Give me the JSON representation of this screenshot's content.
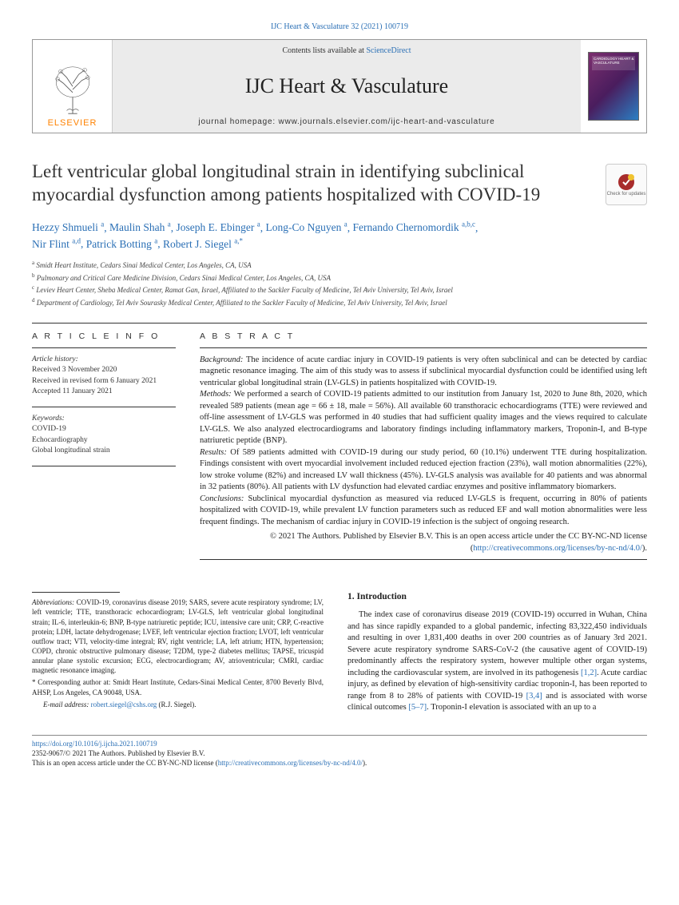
{
  "citation": "IJC Heart & Vasculature 32 (2021) 100719",
  "publisher": "ELSEVIER",
  "contentsPrefix": "Contents lists available at ",
  "contentsLink": "ScienceDirect",
  "journalName": "IJC Heart & Vasculature",
  "homepagePrefix": "journal homepage: ",
  "homepage": "www.journals.elsevier.com/ijc-heart-and-vasculature",
  "coverTitle": "CARDIOLOGY HEART & VASCULATURE",
  "title": "Left ventricular global longitudinal strain in identifying subclinical myocardial dysfunction among patients hospitalized with COVID-19",
  "updatesBadge": "Check for updates",
  "authors": [
    {
      "name": "Hezzy Shmueli",
      "sup": "a"
    },
    {
      "name": "Maulin Shah",
      "sup": "a"
    },
    {
      "name": "Joseph E. Ebinger",
      "sup": "a"
    },
    {
      "name": "Long-Co Nguyen",
      "sup": "a"
    },
    {
      "name": "Fernando Chernomordik",
      "sup": "a,b,c"
    },
    {
      "name": "Nir Flint",
      "sup": "a,d"
    },
    {
      "name": "Patrick Botting",
      "sup": "a"
    },
    {
      "name": "Robert J. Siegel",
      "sup": "a,*"
    }
  ],
  "affiliations": [
    {
      "sup": "a",
      "text": "Smidt Heart Institute, Cedars Sinai Medical Center, Los Angeles, CA, USA"
    },
    {
      "sup": "b",
      "text": "Pulmonary and Critical Care Medicine Division, Cedars Sinai Medical Center, Los Angeles, CA, USA"
    },
    {
      "sup": "c",
      "text": "Leviev Heart Center, Sheba Medical Center, Ramat Gan, Israel, Affiliated to the Sackler Faculty of Medicine, Tel Aviv University, Tel Aviv, Israel"
    },
    {
      "sup": "d",
      "text": "Department of Cardiology, Tel Aviv Sourasky Medical Center, Affiliated to the Sackler Faculty of Medicine, Tel Aviv University, Tel Aviv, Israel"
    }
  ],
  "articleInfo": {
    "head": "A R T I C L E   I N F O",
    "historyHead": "Article history:",
    "received": "Received 3 November 2020",
    "revised": "Received in revised form 6 January 2021",
    "accepted": "Accepted 11 January 2021",
    "keywordsHead": "Keywords:",
    "keywords": [
      "COVID-19",
      "Echocardiography",
      "Global longitudinal strain"
    ]
  },
  "abstract": {
    "head": "A B S T R A C T",
    "background": "The incidence of acute cardiac injury in COVID-19 patients is very often subclinical and can be detected by cardiac magnetic resonance imaging. The aim of this study was to assess if subclinical myocardial dysfunction could be identified using left ventricular global longitudinal strain (LV-GLS) in patients hospitalized with COVID-19.",
    "methods": "We performed a search of COVID-19 patients admitted to our institution from January 1st, 2020 to June 8th, 2020, which revealed 589 patients (mean age = 66 ± 18, male = 56%). All available 60 transthoracic echocardiograms (TTE) were reviewed and off-line assessment of LV-GLS was performed in 40 studies that had sufficient quality images and the views required to calculate LV-GLS. We also analyzed electrocardiograms and laboratory findings including inflammatory markers, Troponin-I, and B-type natriuretic peptide (BNP).",
    "results": "Of 589 patients admitted with COVID-19 during our study period, 60 (10.1%) underwent TTE during hospitalization. Findings consistent with overt myocardial involvement included reduced ejection fraction (23%), wall motion abnormalities (22%), low stroke volume (82%) and increased LV wall thickness (45%). LV-GLS analysis was available for 40 patients and was abnormal in 32 patients (80%). All patients with LV dysfunction had elevated cardiac enzymes and positive inflammatory biomarkers.",
    "conclusions": "Subclinical myocardial dysfunction as measured via reduced LV-GLS is frequent, occurring in 80% of patients hospitalized with COVID-19, while prevalent LV function parameters such as reduced EF and wall motion abnormalities were less frequent findings. The mechanism of cardiac injury in COVID-19 infection is the subject of ongoing research.",
    "copyright": "© 2021 The Authors. Published by Elsevier B.V. This is an open access article under the CC BY-NC-ND license (",
    "licenseUrl": "http://creativecommons.org/licenses/by-nc-nd/4.0/",
    "closeParen": ")."
  },
  "introduction": {
    "head": "1. Introduction",
    "text": "The index case of coronavirus disease 2019 (COVID-19) occurred in Wuhan, China and has since rapidly expanded to a global pandemic, infecting 83,322,450 individuals and resulting in over 1,831,400 deaths in over 200 countries as of January 3rd 2021. Severe acute respiratory syndrome SARS-CoV-2 (the causative agent of COVID-19) predominantly affects the respiratory system, however multiple other organ systems, including the cardiovascular system, are involved in its pathogenesis ",
    "ref12": "[1,2]",
    "text2": ". Acute cardiac injury, as defined by elevation of high-sensitivity cardiac troponin-I, has been reported to range from 8 to 28% of patients with COVID-19 ",
    "ref34": "[3,4]",
    "text3": " and is associated with worse clinical outcomes ",
    "ref57": "[5–7]",
    "text4": ". Troponin-I elevation is associated with an up to a"
  },
  "footnotes": {
    "abbrHead": "Abbreviations:",
    "abbr": " COVID-19, coronavirus disease 2019; SARS, severe acute respiratory syndrome; LV, left ventricle; TTE, transthoracic echocardiogram; LV-GLS, left ventricular global longitudinal strain; IL-6, interleukin-6; BNP, B-type natriuretic peptide; ICU, intensive care unit; CRP, C-reactive protein; LDH, lactate dehydrogenase; LVEF, left ventricular ejection fraction; LVOT, left ventricular outflow tract; VTI, velocity-time integral; RV, right ventricle; LA, left atrium; HTN, hypertension; COPD, chronic obstructive pulmonary disease; T2DM, type-2 diabetes mellitus; TAPSE, tricuspid annular plane systolic excursion; ECG, electrocardiogram; AV, atrioventricular; CMRI, cardiac magnetic resonance imaging.",
    "corrMark": "*",
    "corr": " Corresponding author at: Smidt Heart Institute, Cedars-Sinai Medical Center, 8700 Beverly Blvd, AHSP, Los Angeles, CA 90048, USA.",
    "emailHead": "E-mail address:",
    "email": "robert.siegel@cshs.org",
    "emailSuffix": " (R.J. Siegel)."
  },
  "bottom": {
    "doi": "https://doi.org/10.1016/j.ijcha.2021.100719",
    "issn": "2352-9067/© 2021 The Authors. Published by Elsevier B.V.",
    "license": "This is an open access article under the CC BY-NC-ND license (",
    "licenseUrl": "http://creativecommons.org/licenses/by-nc-nd/4.0/",
    "closeParen": ")."
  }
}
